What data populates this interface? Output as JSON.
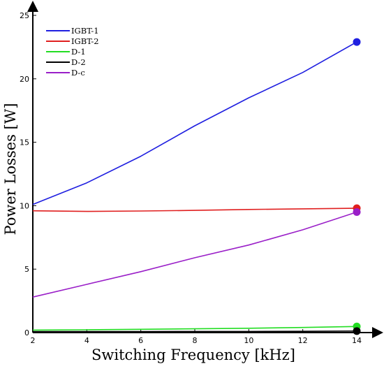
{
  "chart_data": {
    "type": "line",
    "xlabel": "Switching Frequency [kHz]",
    "ylabel": "Power Losses [W]",
    "xlim": [
      2,
      14
    ],
    "ylim": [
      0,
      25
    ],
    "x_ticks": [
      2,
      4,
      6,
      8,
      10,
      12,
      14
    ],
    "y_ticks": [
      0,
      5,
      10,
      15,
      20,
      25
    ],
    "grid": false,
    "legend_position": "top-left",
    "x": [
      2,
      4,
      6,
      8,
      10,
      12,
      14
    ],
    "series": [
      {
        "name": "IGBT-1",
        "color": "#1f1fe0",
        "values": [
          10.1,
          11.8,
          13.9,
          16.3,
          18.5,
          20.5,
          22.9
        ]
      },
      {
        "name": "IGBT-2",
        "color": "#e01f1f",
        "values": [
          9.6,
          9.55,
          9.58,
          9.63,
          9.7,
          9.75,
          9.8
        ]
      },
      {
        "name": "D-1",
        "color": "#22dd22",
        "values": [
          0.2,
          0.22,
          0.26,
          0.3,
          0.34,
          0.4,
          0.48
        ]
      },
      {
        "name": "D-2",
        "color": "#000000",
        "values": [
          0.08,
          0.08,
          0.08,
          0.09,
          0.09,
          0.1,
          0.12
        ]
      },
      {
        "name": "D-c",
        "color": "#9a1fc8",
        "values": [
          2.8,
          3.8,
          4.8,
          5.9,
          6.9,
          8.1,
          9.5
        ]
      }
    ],
    "end_markers": "filled circles at final point of each series"
  }
}
